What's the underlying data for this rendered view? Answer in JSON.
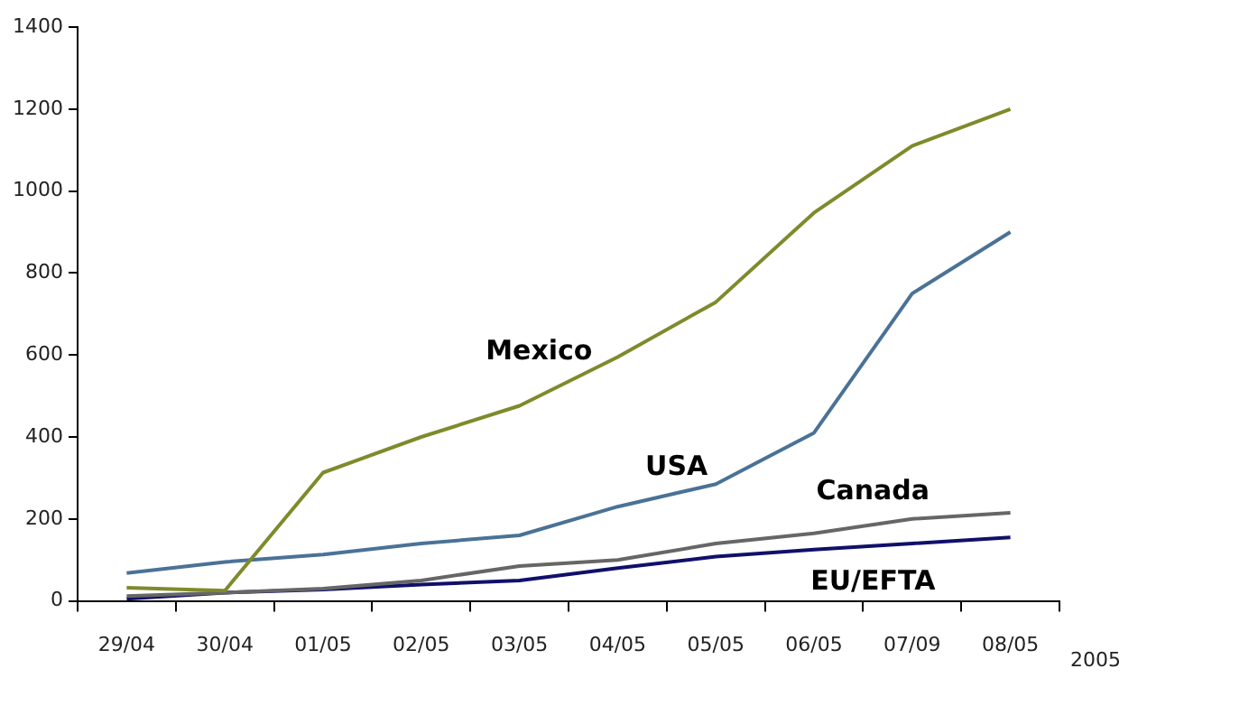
{
  "chart_data": {
    "type": "line",
    "xlabel": "2005",
    "categories": [
      "29/04",
      "30/04",
      "01/05",
      "02/05",
      "03/05",
      "04/05",
      "05/05",
      "06/05",
      "07/09",
      "08/05"
    ],
    "series": [
      {
        "name": "Mexico",
        "color": "#7f8a2b",
        "values": [
          32,
          25,
          313,
          400,
          476,
          595,
          729,
          947,
          1110,
          1200
        ]
      },
      {
        "name": "USA",
        "color": "#4a7296",
        "values": [
          68,
          95,
          113,
          140,
          160,
          230,
          285,
          410,
          750,
          900
        ]
      },
      {
        "name": "Canada",
        "color": "#666666",
        "values": [
          12,
          20,
          30,
          50,
          85,
          100,
          140,
          165,
          200,
          215
        ]
      },
      {
        "name": "EU/EFTA",
        "color": "#10106b",
        "values": [
          5,
          20,
          28,
          40,
          50,
          80,
          108,
          125,
          140,
          155
        ]
      }
    ],
    "ylim": [
      0,
      1400
    ],
    "yticks": [
      0,
      200,
      400,
      600,
      800,
      1000,
      1200,
      1400
    ],
    "grid": false,
    "legend": false,
    "marker": "none",
    "line_style": "solid"
  }
}
